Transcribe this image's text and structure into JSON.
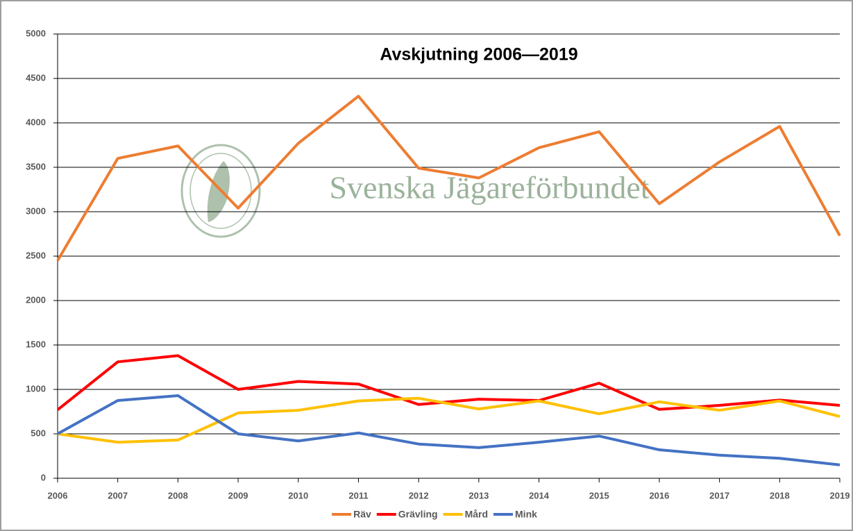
{
  "chart_data": {
    "type": "line",
    "title": "Avskjutning 2006—2019",
    "watermark": "Svenska Jägareförbundet",
    "categories": [
      "2006",
      "2007",
      "2008",
      "2009",
      "2010",
      "2011",
      "2012",
      "2013",
      "2014",
      "2015",
      "2016",
      "2017",
      "2018",
      "2019"
    ],
    "series": [
      {
        "name": "Räv",
        "color": "#ED7D31",
        "values": [
          2450,
          3600,
          3740,
          3040,
          3770,
          4300,
          3490,
          3380,
          3720,
          3900,
          3090,
          3560,
          3960,
          2730
        ]
      },
      {
        "name": "Grävling",
        "color": "#FF0000",
        "values": [
          770,
          1310,
          1380,
          1000,
          1090,
          1060,
          830,
          890,
          875,
          1070,
          775,
          820,
          880,
          820
        ]
      },
      {
        "name": "Mård",
        "color": "#FFC000",
        "values": [
          500,
          405,
          430,
          735,
          765,
          870,
          900,
          780,
          870,
          725,
          860,
          765,
          870,
          695
        ]
      },
      {
        "name": "Mink",
        "color": "#4472C4",
        "values": [
          500,
          875,
          930,
          500,
          420,
          510,
          385,
          345,
          405,
          475,
          320,
          260,
          225,
          150
        ]
      }
    ],
    "ylim": [
      0,
      5000
    ],
    "yticks": [
      0,
      500,
      1000,
      1500,
      2000,
      2500,
      3000,
      3500,
      4000,
      4500,
      5000
    ],
    "grid": true,
    "legend": "bottom"
  }
}
